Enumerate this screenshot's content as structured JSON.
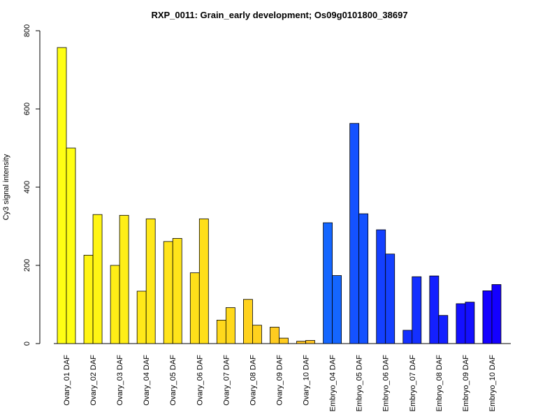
{
  "chart_data": {
    "type": "bar",
    "title": "RXP_0011: Grain_early development; Os09g0101800_38697",
    "xlabel": "",
    "ylabel": "Cy3 signal intensity",
    "ylim": [
      0,
      800
    ],
    "yticks": [
      "0",
      "200",
      "400",
      "600",
      "800"
    ],
    "categories": [
      "Ovary_01 DAF",
      "Ovary_02 DAF",
      "Ovary_03 DAF",
      "Ovary_04 DAF",
      "Ovary_05 DAF",
      "Ovary_06 DAF",
      "Ovary_07 DAF",
      "Ovary_08 DAF",
      "Ovary_09 DAF",
      "Ovary_10 DAF",
      "Embryo_04 DAF",
      "Embryo_05 DAF",
      "Embryo_06 DAF",
      "Embryo_07 DAF",
      "Embryo_08 DAF",
      "Embryo_09 DAF",
      "Embryo_10 DAF"
    ],
    "series": [
      {
        "values": [
          757,
          226,
          200,
          134,
          261,
          181,
          60,
          113,
          42,
          6,
          309,
          563,
          291,
          34,
          173,
          102,
          135
        ]
      },
      {
        "values": [
          500,
          330,
          328,
          319,
          269,
          319,
          92,
          47,
          14,
          8,
          174,
          332,
          229,
          171,
          72,
          106,
          151
        ]
      }
    ],
    "colors": [
      "#FFFF14",
      "#FFF514",
      "#FFEE17",
      "#FFE819",
      "#FFE41A",
      "#FFDF1A",
      "#FFD91C",
      "#FFD21E",
      "#FFCC20",
      "#FFC522",
      "#1466FF",
      "#1452FF",
      "#1440FF",
      "#1430FF",
      "#1420FF",
      "#1410FF",
      "#1400FF"
    ],
    "legend": "none",
    "grid": false
  }
}
